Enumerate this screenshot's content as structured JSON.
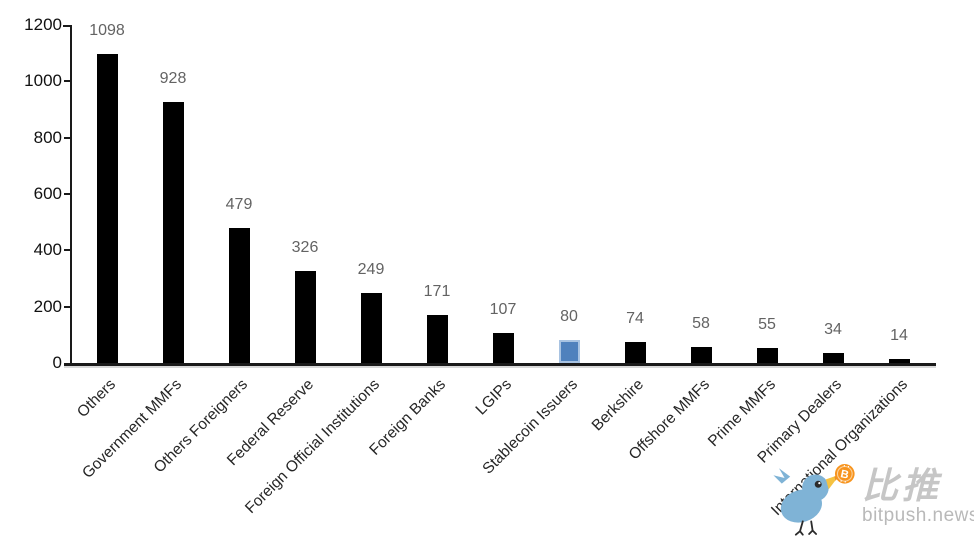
{
  "chart_data": {
    "type": "bar",
    "title": "",
    "xlabel": "",
    "ylabel": "",
    "categories": [
      "Others",
      "Government MMFs",
      "Others Foreigners",
      "Federal Reserve",
      "Foreign Official Institutions",
      "Foreign Banks",
      "LGIPs",
      "Stablecoin Issuers",
      "Berkshire",
      "Offshore MMFs",
      "Prime MMFs",
      "Primary Dealers",
      "International Organizations"
    ],
    "values": [
      1098,
      928,
      479,
      326,
      249,
      171,
      107,
      80,
      74,
      58,
      55,
      34,
      14
    ],
    "ylim": [
      0,
      1200
    ],
    "yticks": [
      0,
      200,
      400,
      600,
      800,
      1000,
      1200
    ],
    "grid": false,
    "value_labels": true,
    "legend": "none",
    "bar_color": "#000000",
    "highlight_index": 7,
    "highlight_category": "Stablecoin Issuers",
    "highlight_color": "#4F81BD",
    "highlight_border_color": "#A8C3E2",
    "axis_color": "#1a1a1a",
    "value_label_color": "#636363",
    "tick_label_color": "#111111"
  },
  "watermark": {
    "brand_cn": "比推",
    "brand_domain": "bitpush.news",
    "logo": "bitpush-bird-logo",
    "coin_symbol": "B",
    "bird_color": "#7FB3D6",
    "coin_color": "#F7941E"
  }
}
